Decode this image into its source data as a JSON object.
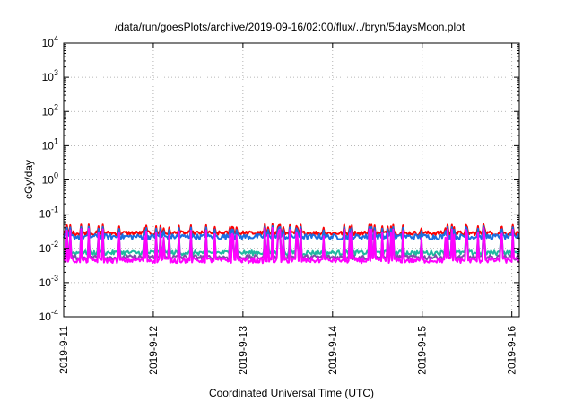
{
  "chart_data": {
    "type": "line",
    "title": "/data/run/goesPlots/archive/2019-09-16/02:00/flux/../bryn/5daysMoon.plot",
    "xlabel": "Coordinated Universal Time (UTC)",
    "ylabel": "cGy/day",
    "x_ticks": [
      "2019-9-11",
      "2019-9-12",
      "2019-9-13",
      "2019-9-14",
      "2019-9-15",
      "2019-9-16"
    ],
    "y_scale": "log",
    "y_ticks": [
      {
        "base": "10",
        "exp": "-4"
      },
      {
        "base": "10",
        "exp": "-3"
      },
      {
        "base": "10",
        "exp": "-2"
      },
      {
        "base": "10",
        "exp": "-1"
      },
      {
        "base": "10",
        "exp": "0"
      },
      {
        "base": "10",
        "exp": "1"
      },
      {
        "base": "10",
        "exp": "2"
      },
      {
        "base": "10",
        "exp": "3"
      },
      {
        "base": "10",
        "exp": "4"
      }
    ],
    "xlim": [
      "2019-09-11",
      "2019-09-16T02:00"
    ],
    "ylim": [
      0.0001,
      10000
    ],
    "grid": true,
    "series": [
      {
        "color": "#ff0000",
        "base": 0.028,
        "spike": 0.052,
        "jitter": 0.004
      },
      {
        "color": "#1a6fe0",
        "base": 0.022,
        "spike": 0.045,
        "jitter": 0.004
      },
      {
        "color": "#20b8a0",
        "base": 0.0075,
        "spike": 0.03,
        "jitter": 0.0012
      },
      {
        "color": "#7f4faa",
        "base": 0.0055,
        "spike": 0.026,
        "jitter": 0.0009
      },
      {
        "color": "#ff00ff",
        "base": 0.0045,
        "spike": 0.04,
        "jitter": 0.0008
      }
    ]
  }
}
